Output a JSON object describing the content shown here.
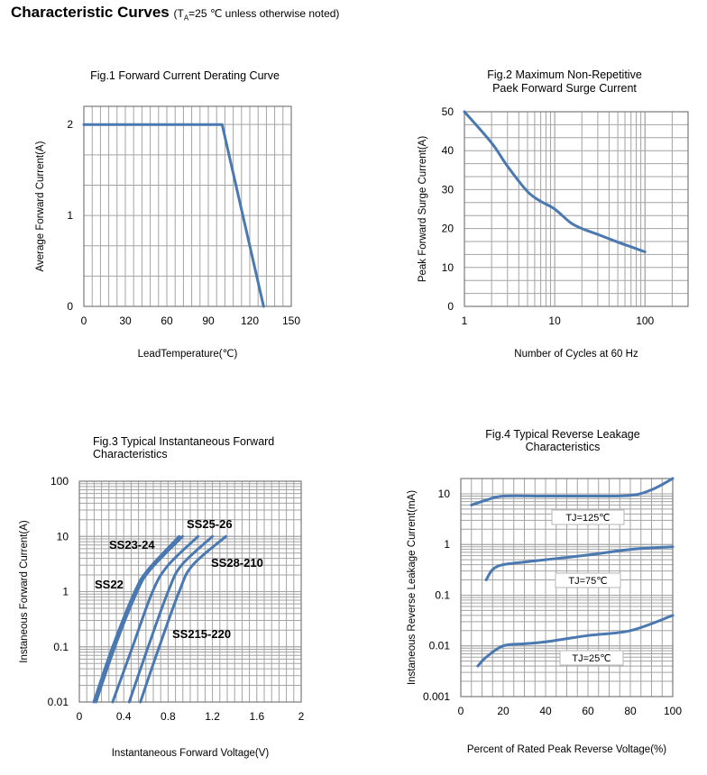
{
  "page": {
    "title": "Characteristic Curves",
    "subtitle_pre": "(T",
    "subtitle_sub": "A",
    "subtitle_post": "=25 ℃ unless otherwise noted)"
  },
  "chart_data": [
    {
      "id": "fig1",
      "type": "line",
      "title": [
        "Fig.1 Forward Current Derating Curve"
      ],
      "xlabel": "LeadTemperature(℃)",
      "ylabel": "Average Forward Current(A)",
      "xlim": [
        0,
        150
      ],
      "ylim": [
        0,
        2.2
      ],
      "x_ticks": [
        0,
        30,
        60,
        90,
        120,
        150
      ],
      "x_tick_labels": [
        "0",
        "30",
        "60",
        "90",
        "120",
        "150"
      ],
      "y_ticks": [
        0,
        1,
        2
      ],
      "y_tick_labels": [
        "0",
        "1",
        "2"
      ],
      "grid": true,
      "series": [
        {
          "x": [
            0,
            100,
            130
          ],
          "y": [
            2,
            2,
            0
          ]
        }
      ]
    },
    {
      "id": "fig2",
      "type": "line",
      "title": [
        "Fig.2 Maximum  Non-Repetitive",
        "Paek Forward Surge Current"
      ],
      "xlabel": "Number of Cycles at 60 Hz",
      "ylabel": "Peak Forward Surge Current(A)",
      "xscale": "log",
      "xlim": [
        1,
        300
      ],
      "ylim": [
        0,
        50
      ],
      "x_ticks": [
        1,
        10,
        100
      ],
      "x_tick_labels": [
        "1",
        "10",
        "100"
      ],
      "y_ticks": [
        0,
        10,
        20,
        30,
        40,
        50
      ],
      "y_tick_labels": [
        "0",
        "10",
        "20",
        "30",
        "40",
        "50"
      ],
      "grid": true,
      "series": [
        {
          "x": [
            1,
            2,
            3,
            5,
            7,
            10,
            15,
            20,
            30,
            50,
            70,
            100
          ],
          "y": [
            50,
            42,
            36,
            29.5,
            27,
            25,
            21.5,
            20,
            18.5,
            16.5,
            15.3,
            14
          ]
        }
      ]
    },
    {
      "id": "fig3",
      "type": "line",
      "title": [
        "Fig.3 Typical Instantaneous Forward",
        "Characteristics"
      ],
      "xlabel": "Instantaneous Forward Voltage(V)",
      "ylabel": "Instaneous Forward Current(A)",
      "yscale": "log",
      "xlim": [
        0,
        2
      ],
      "ylim": [
        0.01,
        100
      ],
      "x_ticks": [
        0,
        0.4,
        0.8,
        1.2,
        1.6,
        2
      ],
      "x_tick_labels": [
        "0",
        "0.4",
        "0.8",
        "1.2",
        "1.6",
        "2"
      ],
      "y_ticks": [
        0.01,
        0.1,
        1,
        10,
        100
      ],
      "y_tick_labels": [
        "0.01",
        "0.1",
        "1",
        "10",
        "100"
      ],
      "grid": true,
      "series": [
        {
          "name": "SS22",
          "x": [
            0.13,
            0.3,
            0.5,
            0.62,
            0.9
          ],
          "y": [
            0.01,
            0.1,
            1,
            2.5,
            10
          ]
        },
        {
          "name": "SS23-24",
          "x": [
            0.15,
            0.32,
            0.52,
            0.64,
            0.93
          ],
          "y": [
            0.01,
            0.1,
            1,
            2.5,
            10
          ]
        },
        {
          "name": "SS25-26",
          "x": [
            0.3,
            0.48,
            0.66,
            0.8,
            1.07
          ],
          "y": [
            0.01,
            0.1,
            1,
            3,
            10
          ]
        },
        {
          "name": "SS28-210",
          "x": [
            0.45,
            0.62,
            0.8,
            0.92,
            1.2
          ],
          "y": [
            0.01,
            0.1,
            1,
            3,
            10
          ]
        },
        {
          "name": "SS215-220",
          "x": [
            0.55,
            0.72,
            0.9,
            1.02,
            1.32
          ],
          "y": [
            0.01,
            0.1,
            1,
            3,
            10
          ]
        }
      ],
      "annotations": [
        "SS25-26",
        "SS23-24",
        "SS28-210",
        "SS22",
        "SS215-220"
      ]
    },
    {
      "id": "fig4",
      "type": "line",
      "title": [
        "Fig.4 Typical Reverse Leakage",
        "Characteristics"
      ],
      "xlabel": "Percent of Rated Peak  Reverse  Voltage(%)",
      "ylabel": "Instaneous  Reverse  Leakage  Current(mA)",
      "yscale": "log",
      "xlim": [
        0,
        100
      ],
      "ylim": [
        0.001,
        20
      ],
      "x_ticks": [
        0,
        20,
        40,
        60,
        80,
        100
      ],
      "x_tick_labels": [
        "0",
        "20",
        "40",
        "60",
        "80",
        "100"
      ],
      "y_ticks": [
        0.001,
        0.01,
        0.1,
        1,
        10
      ],
      "y_tick_labels": [
        "0.001",
        "0.01",
        "0.1",
        "1",
        "10"
      ],
      "grid": true,
      "series": [
        {
          "name": "TJ=125℃",
          "x": [
            5,
            12,
            20,
            40,
            60,
            80,
            90,
            100
          ],
          "y": [
            6,
            7.5,
            9,
            9,
            9,
            9.3,
            12,
            20
          ]
        },
        {
          "name": "TJ=75℃",
          "x": [
            12,
            15,
            20,
            30,
            40,
            60,
            80,
            100
          ],
          "y": [
            0.2,
            0.32,
            0.4,
            0.45,
            0.5,
            0.62,
            0.8,
            0.9
          ]
        },
        {
          "name": "TJ=25℃",
          "x": [
            8,
            12,
            20,
            30,
            40,
            60,
            80,
            100
          ],
          "y": [
            0.004,
            0.006,
            0.01,
            0.011,
            0.012,
            0.016,
            0.02,
            0.04
          ]
        }
      ],
      "annotations": [
        "TJ=125℃",
        "TJ=75℃",
        "TJ=25℃"
      ]
    }
  ]
}
